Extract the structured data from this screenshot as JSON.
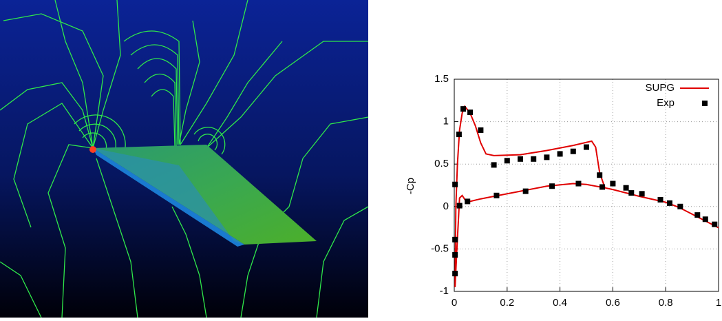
{
  "chart_data": {
    "type": "line",
    "y_label": "-Cp",
    "xlim": [
      0,
      1
    ],
    "xticks": [
      0,
      0.2,
      0.4,
      0.6,
      0.8,
      1
    ],
    "ylim": [
      -1,
      1.5
    ],
    "yticks": [
      -1,
      -0.5,
      0,
      0.5,
      1,
      1.5
    ],
    "grid": true,
    "legend": "top-right",
    "series": [
      {
        "name": "SUPG",
        "color": "#e00000",
        "mark": "line",
        "x": [
          1,
          0.95,
          0.9,
          0.85,
          0.8,
          0.7,
          0.6,
          0.57,
          0.5,
          0.45,
          0.35,
          0.25,
          0.15,
          0.1,
          0.06,
          0.045,
          0.03,
          0.02,
          0.01,
          0.003,
          0.006,
          0.012,
          0.02,
          0.03,
          0.04,
          0.06,
          0.08,
          0.1,
          0.12,
          0.15,
          0.25,
          0.35,
          0.45,
          0.52,
          0.535,
          0.55,
          0.57
        ],
        "values": [
          -0.25,
          -0.17,
          -0.09,
          -0.01,
          0.05,
          0.12,
          0.2,
          0.22,
          0.26,
          0.27,
          0.24,
          0.18,
          0.12,
          0.09,
          0.06,
          0.06,
          0.13,
          0.1,
          -0.5,
          -0.95,
          0.0,
          0.5,
          0.9,
          1.1,
          1.18,
          1.1,
          0.95,
          0.75,
          0.62,
          0.6,
          0.61,
          0.66,
          0.72,
          0.77,
          0.7,
          0.4,
          0.22
        ]
      },
      {
        "name": "Exp",
        "color": "#000000",
        "mark": "square",
        "x": [
          0.018,
          0.034,
          0.06,
          0.1,
          0.15,
          0.2,
          0.25,
          0.3,
          0.35,
          0.4,
          0.45,
          0.5,
          0.55,
          0.56,
          0.6,
          0.65,
          0.67,
          0.71,
          0.78,
          0.815,
          0.855,
          0.92,
          0.95,
          0.985,
          0.003,
          0.003,
          0.003,
          0.003,
          0.02,
          0.05,
          0.16,
          0.27,
          0.37,
          0.47
        ],
        "values": [
          0.85,
          1.15,
          1.11,
          0.9,
          0.49,
          0.54,
          0.56,
          0.56,
          0.58,
          0.62,
          0.65,
          0.7,
          0.37,
          0.23,
          0.27,
          0.22,
          0.16,
          0.15,
          0.08,
          0.04,
          0.0,
          -0.1,
          -0.15,
          -0.21,
          0.26,
          -0.39,
          -0.57,
          -0.79,
          0.01,
          0.06,
          0.13,
          0.18,
          0.24,
          0.27
        ]
      }
    ]
  }
}
